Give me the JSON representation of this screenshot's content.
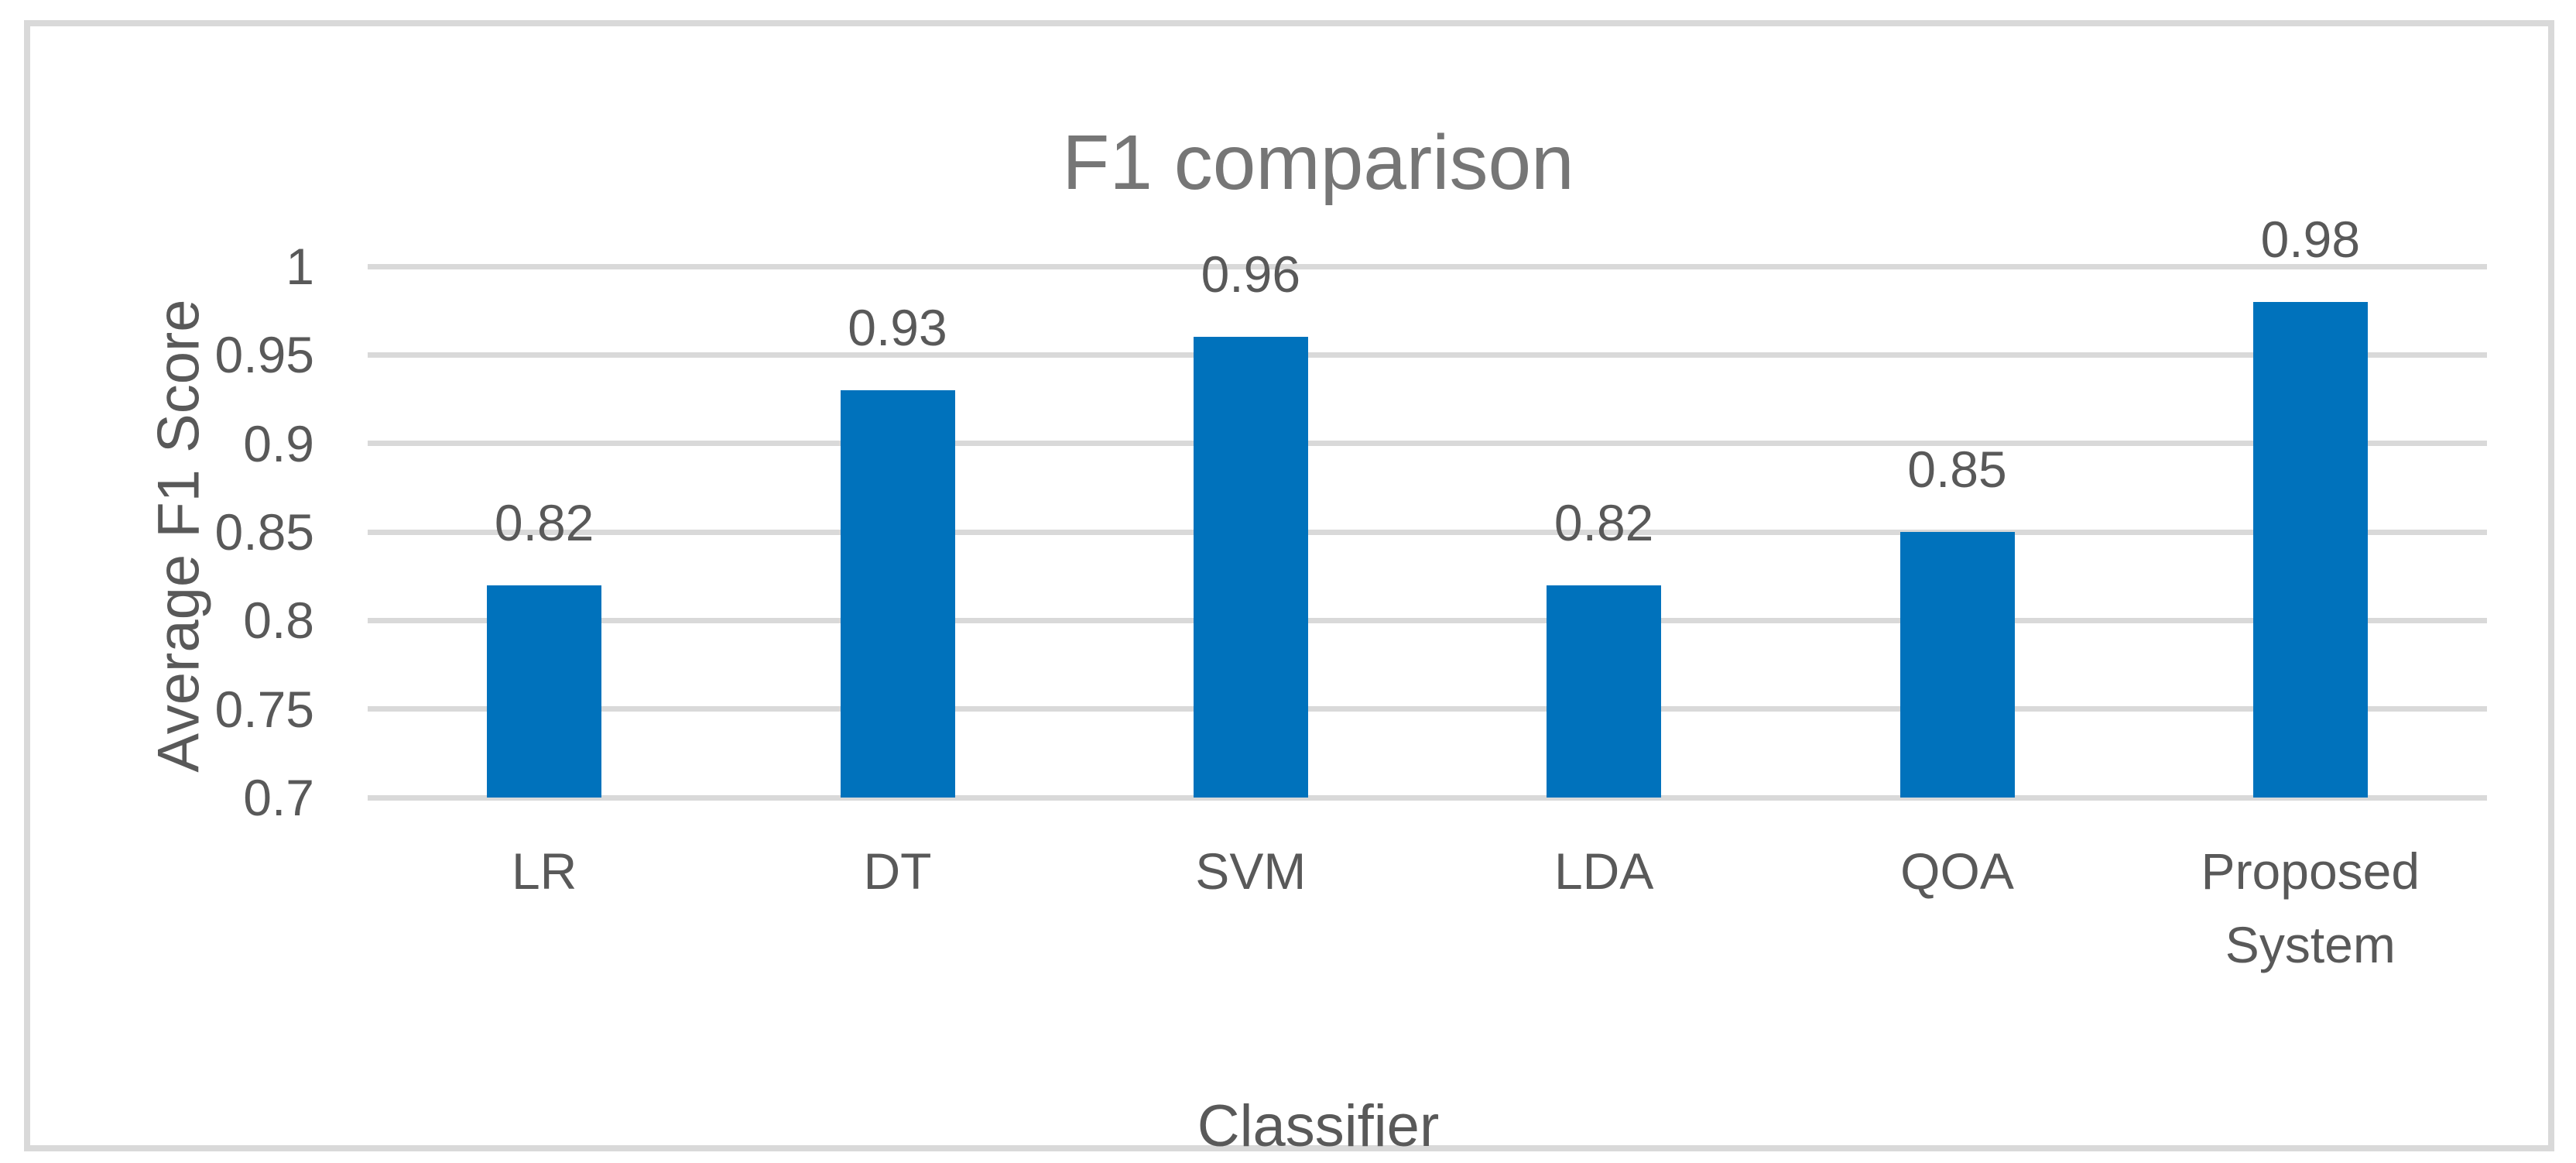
{
  "chart_data": {
    "type": "bar",
    "title": "F1 comparison",
    "xlabel": "Classifier",
    "ylabel": "Average F1 Score",
    "categories": [
      "LR",
      "DT",
      "SVM",
      "LDA",
      "QOA",
      "Proposed System"
    ],
    "values": [
      0.82,
      0.93,
      0.96,
      0.82,
      0.85,
      0.98
    ],
    "data_labels": [
      "0.82",
      "0.93",
      "0.96",
      "0.82",
      "0.85",
      "0.98"
    ],
    "ylim": [
      0.7,
      1.0
    ],
    "ytick_step": 0.05,
    "ytick_labels": [
      "0.7",
      "0.75",
      "0.8",
      "0.85",
      "0.9",
      "0.95",
      "1"
    ],
    "grid": true,
    "legend": false,
    "colors": {
      "bar": "#0072BC",
      "gridline": "#D9D9D9",
      "frame_border": "#D9D9D9",
      "tick_text": "#595959",
      "label_text": "#595959",
      "title_text": "#767676",
      "background": "#FFFFFF"
    }
  }
}
